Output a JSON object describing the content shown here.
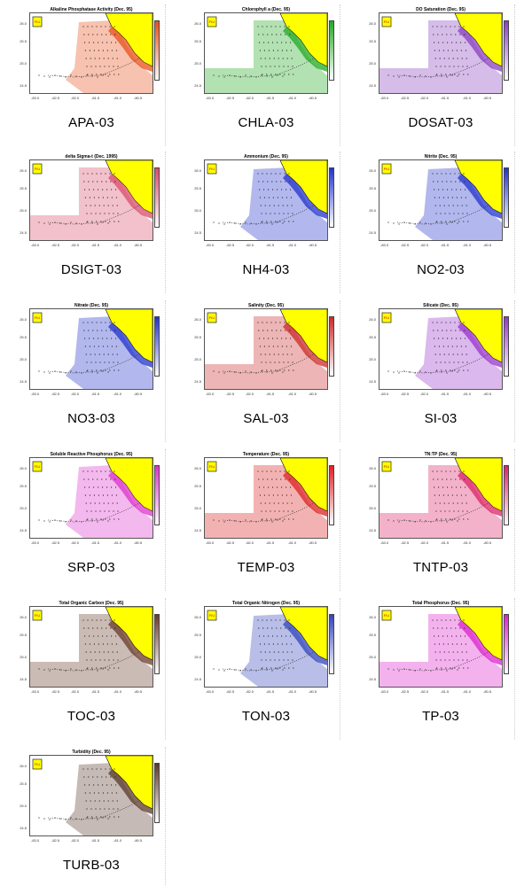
{
  "maps": [
    {
      "title": "Alkaline Phosphatase Activity (Dec. 95)",
      "caption": "APA-03",
      "color": "#e8501a"
    },
    {
      "title": "Chlorophyll a (Dec. 95)",
      "caption": "CHLA-03",
      "color": "#22aa22"
    },
    {
      "title": "DO Saturation (Dec. 95)",
      "caption": "DOSAT-03",
      "color": "#8a3fc0"
    },
    {
      "title": "delta Sigma-t (Dec. 1995)",
      "caption": "DSIGT-03",
      "color": "#d94c6a"
    },
    {
      "title": "Ammonium (Dec. 95)",
      "caption": "NH4-03",
      "color": "#2233cc"
    },
    {
      "title": "Nitrite (Dec. 95)",
      "caption": "NO2-03",
      "color": "#2233cc"
    },
    {
      "title": "Nitrate (Dec. 95)",
      "caption": "NO3-03",
      "color": "#2233cc"
    },
    {
      "title": "Salinity (Dec. 95)",
      "caption": "SAL-03",
      "color": "#cc2a2a"
    },
    {
      "title": "Silicate (Dec. 95)",
      "caption": "SI-03",
      "color": "#9933cc"
    },
    {
      "title": "Soluble Reactive Phosphorus (Dec. 95)",
      "caption": "SRP-03",
      "color": "#dd33cc"
    },
    {
      "title": "Temperature (Dec. 95)",
      "caption": "TEMP-03",
      "color": "#dd2222"
    },
    {
      "title": "TN:TP (Dec. 95)",
      "caption": "TNTP-03",
      "color": "#dd2266"
    },
    {
      "title": "Total Organic Carbon (Dec. 95)",
      "caption": "TOC-03",
      "color": "#6b3b2a"
    },
    {
      "title": "Total Organic Nitrogen (Dec. 95)",
      "caption": "TON-03",
      "color": "#3344bb"
    },
    {
      "title": "Total Phosphorus (Dec. 95)",
      "caption": "TP-03",
      "color": "#dd22cc"
    },
    {
      "title": "Turbidity (Dec. 95)",
      "caption": "TURB-03",
      "color": "#5a3a2a"
    }
  ],
  "axis": {
    "x_ticks": [
      "-83.0",
      "-82.5",
      "-82.0",
      "-81.5",
      "-81.0",
      "-80.5"
    ],
    "y_ticks": [
      "26.0",
      "25.5",
      "25.0",
      "24.5"
    ]
  }
}
